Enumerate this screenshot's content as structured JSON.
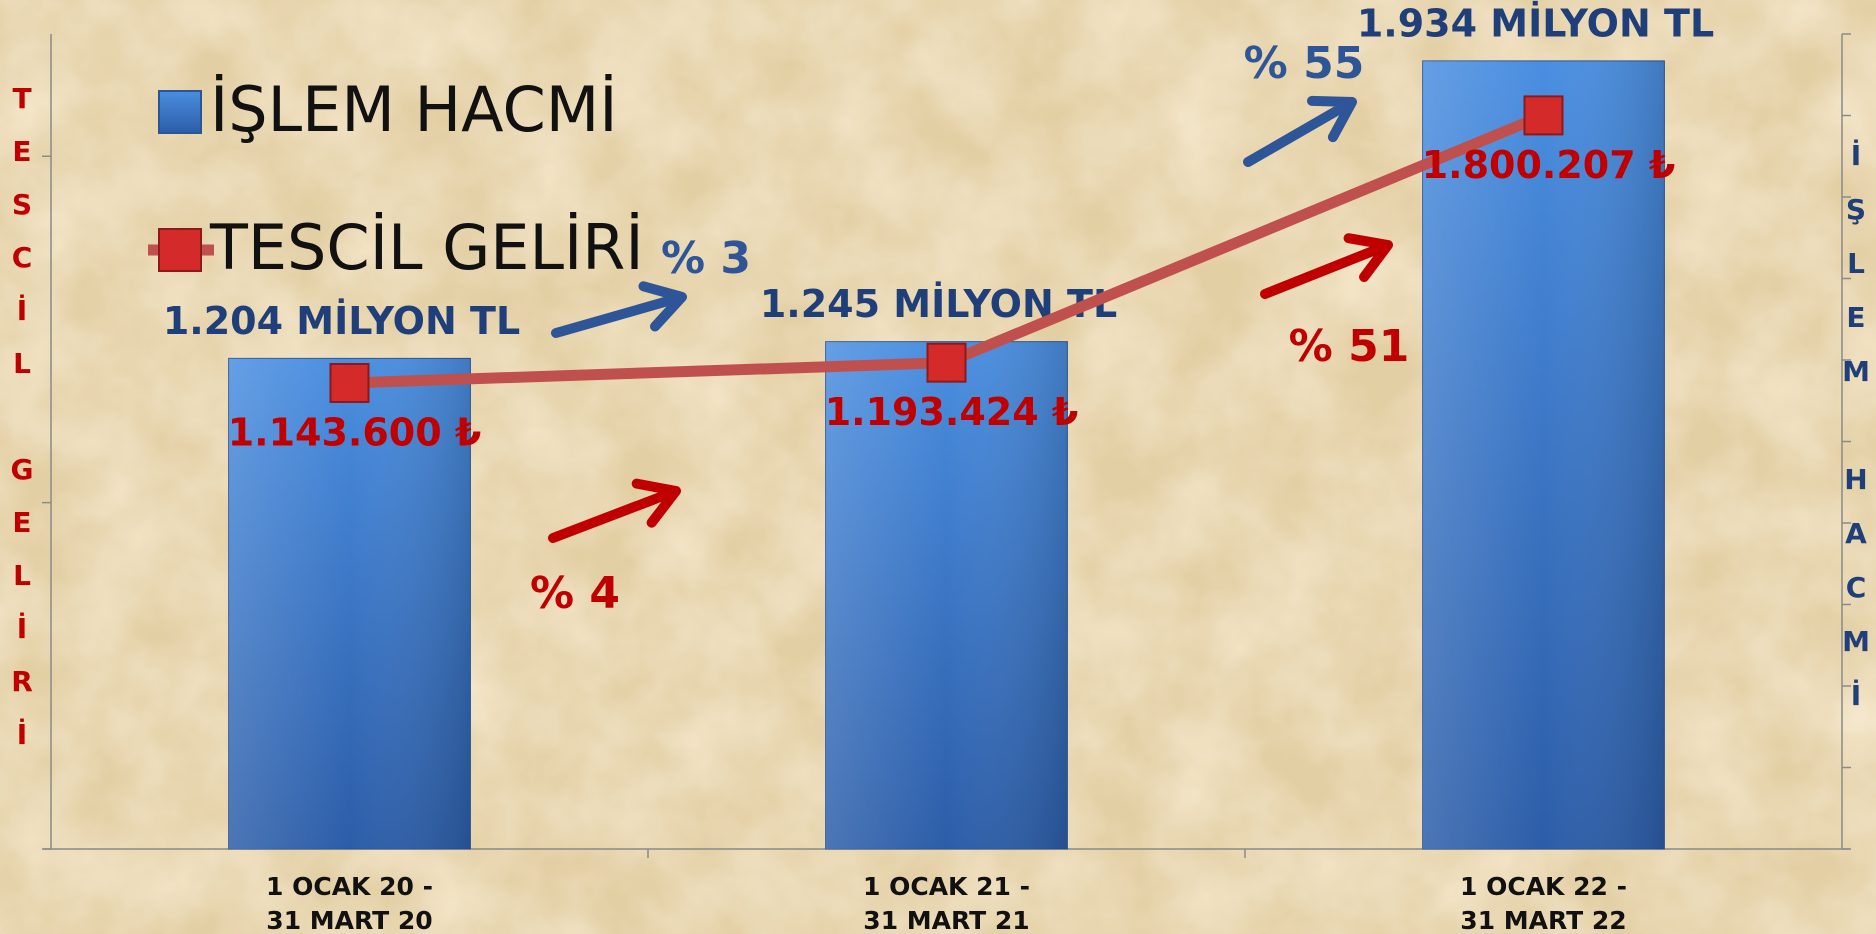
{
  "chart_data": {
    "type": "bar_line",
    "categories": [
      "1 OCAK 20 -\n31 MART 20",
      "1 OCAK 21 -\n31 MART 21",
      "1 OCAK 22 -\n31 MART 22"
    ],
    "series": [
      {
        "name": "İŞLEM HACMİ",
        "type": "bar",
        "axis": "y2",
        "color": "#3d7bd0",
        "label_color": "#1f3f7a",
        "values": [
          1204,
          1245,
          1934
        ],
        "value_labels": [
          "1.204 MİLYON TL",
          "1.245 MİLYON TL",
          "1.934 MİLYON TL"
        ]
      },
      {
        "name": "TESCİL GELİRİ",
        "type": "line",
        "axis": "y",
        "color": "#c0504d",
        "marker_color": "#d42a2a",
        "label_color": "#c00000",
        "values": [
          1143600,
          1193424,
          1800207
        ],
        "value_labels": [
          "1.143.600 ₺",
          "1.193.424 ₺",
          "1.800.207 ₺"
        ]
      }
    ],
    "ylabel": "TESCİL GELİRİ",
    "y2label": "İŞLEM HACMİ",
    "ylim": [
      0,
      2000000
    ],
    "yticks": [
      0,
      850000,
      1700000
    ],
    "y2lim": [
      0,
      2000
    ],
    "y2ticks": [
      0,
      200,
      400,
      600,
      800,
      1000,
      1200,
      1400,
      1600,
      1800,
      2000
    ],
    "legend": "upper left",
    "annotations": [
      {
        "text": "% 3",
        "color": "#2e5597"
      },
      {
        "text": "% 55",
        "color": "#2e5597"
      },
      {
        "text": "% 4",
        "color": "#c00000"
      },
      {
        "text": "% 51",
        "color": "#c00000"
      }
    ]
  }
}
